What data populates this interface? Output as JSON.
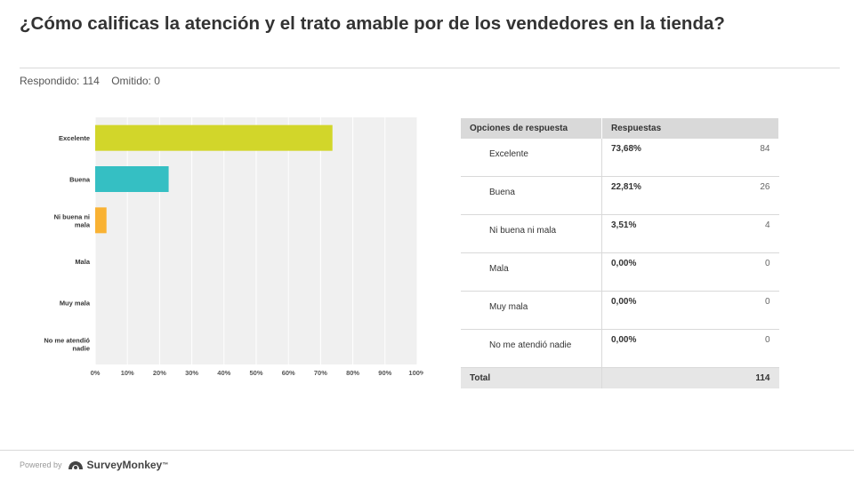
{
  "header": {
    "title": "¿Cómo calificas la atención y el trato amable por de los vendedores en la tienda?",
    "answered": "Respondido: 114",
    "skipped": "Omitido: 0"
  },
  "chart_data": {
    "type": "bar",
    "orientation": "horizontal",
    "categories": [
      "Excelente",
      "Buena",
      "Ni buena ni mala",
      "Mala",
      "Muy mala",
      "No me atendió nadie"
    ],
    "category_labels": [
      [
        "Excelente"
      ],
      [
        "Buena"
      ],
      [
        "Ni buena ni",
        "mala"
      ],
      [
        "Mala"
      ],
      [
        "Muy mala"
      ],
      [
        "No me atendió",
        "nadie"
      ]
    ],
    "values": [
      73.68,
      22.81,
      3.51,
      0,
      0,
      0
    ],
    "colors": [
      "#d2d62a",
      "#35bfc3",
      "#f9b233",
      "#9b59b6",
      "#e74c3c",
      "#2e86c1"
    ],
    "xlim": [
      0,
      100
    ],
    "xticks": [
      "0%",
      "10%",
      "20%",
      "30%",
      "40%",
      "50%",
      "60%",
      "70%",
      "80%",
      "90%",
      "100%"
    ],
    "grid": true,
    "background": "#f0f0f0"
  },
  "table": {
    "headers": [
      "Opciones de respuesta",
      "Respuestas"
    ],
    "rows": [
      {
        "option": "Excelente",
        "percent": "73,68%",
        "count": "84"
      },
      {
        "option": "Buena",
        "percent": "22,81%",
        "count": "26"
      },
      {
        "option": "Ni buena ni mala",
        "percent": "3,51%",
        "count": "4"
      },
      {
        "option": "Mala",
        "percent": "0,00%",
        "count": "0"
      },
      {
        "option": "Muy mala",
        "percent": "0,00%",
        "count": "0"
      },
      {
        "option": "No me atendió nadie",
        "percent": "0,00%",
        "count": "0"
      }
    ],
    "total_label": "Total",
    "total_value": "114"
  },
  "footer": {
    "powered_by": "Powered by",
    "brand": "SurveyMonkey"
  }
}
